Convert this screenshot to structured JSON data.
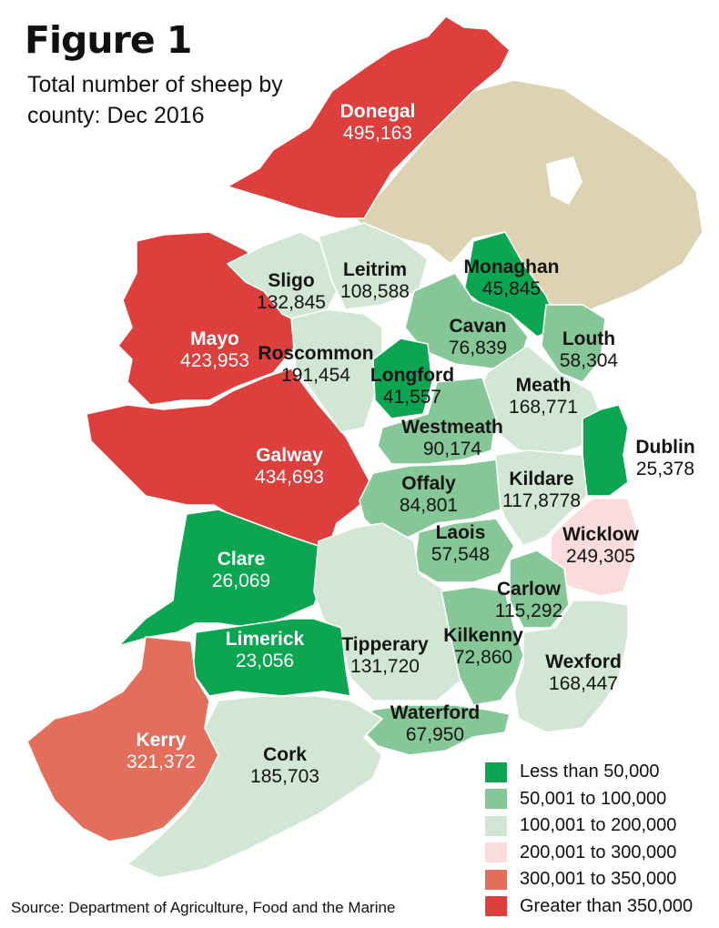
{
  "title": "Figure 1",
  "subtitle": "Total number of sheep by county: Dec 2016",
  "source": "Source: Department of Agriculture, Food and the Marine",
  "colors": {
    "lt50k": "#0ca653",
    "c50_100k": "#86c797",
    "c100_200k": "#d1e7d3",
    "c200_300k": "#f9dcdb",
    "c300_350k": "#e26e5b",
    "gt350k": "#dd3f3c",
    "northern_ireland": "#ddd3b3"
  },
  "legend": [
    {
      "label": "Less than 50,000",
      "color": "#0ca653"
    },
    {
      "label": "50,001 to 100,000",
      "color": "#86c797"
    },
    {
      "label": "100,001 to 200,000",
      "color": "#d1e7d3"
    },
    {
      "label": "200,001 to 300,000",
      "color": "#f9dcdb"
    },
    {
      "label": "300,001 to 350,000",
      "color": "#e26e5b"
    },
    {
      "label": "Greater than 350,000",
      "color": "#dd3f3c"
    }
  ],
  "counties": {
    "donegal": {
      "name": "Donegal",
      "value": "495,163"
    },
    "sligo": {
      "name": "Sligo",
      "value": "132,845"
    },
    "leitrim": {
      "name": "Leitrim",
      "value": "108,588"
    },
    "monaghan": {
      "name": "Monaghan",
      "value": "45,845"
    },
    "mayo": {
      "name": "Mayo",
      "value": "423,953"
    },
    "roscommon": {
      "name": "Roscommon",
      "value": "191,454"
    },
    "cavan": {
      "name": "Cavan",
      "value": "76,839"
    },
    "louth": {
      "name": "Louth",
      "value": "58,304"
    },
    "longford": {
      "name": "Longford",
      "value": "41,557"
    },
    "meath": {
      "name": "Meath",
      "value": "168,771"
    },
    "westmeath": {
      "name": "Westmeath",
      "value": "90,174"
    },
    "dublin": {
      "name": "Dublin",
      "value": "25,378"
    },
    "galway": {
      "name": "Galway",
      "value": "434,693"
    },
    "offaly": {
      "name": "Offaly",
      "value": "84,801"
    },
    "kildare": {
      "name": "Kildare",
      "value": "117,8778"
    },
    "wicklow": {
      "name": "Wicklow",
      "value": "249,305"
    },
    "laois": {
      "name": "Laois",
      "value": "57,548"
    },
    "clare": {
      "name": "Clare",
      "value": "26,069"
    },
    "carlow": {
      "name": "Carlow",
      "value": "115,292"
    },
    "limerick": {
      "name": "Limerick",
      "value": "23,056"
    },
    "tipperary": {
      "name": "Tipperary",
      "value": "131,720"
    },
    "kilkenny": {
      "name": "Kilkenny",
      "value": "72,860"
    },
    "wexford": {
      "name": "Wexford",
      "value": "168,447"
    },
    "waterford": {
      "name": "Waterford",
      "value": "67,950"
    },
    "kerry": {
      "name": "Kerry",
      "value": "321,372"
    },
    "cork": {
      "name": "Cork",
      "value": "185,703"
    }
  }
}
